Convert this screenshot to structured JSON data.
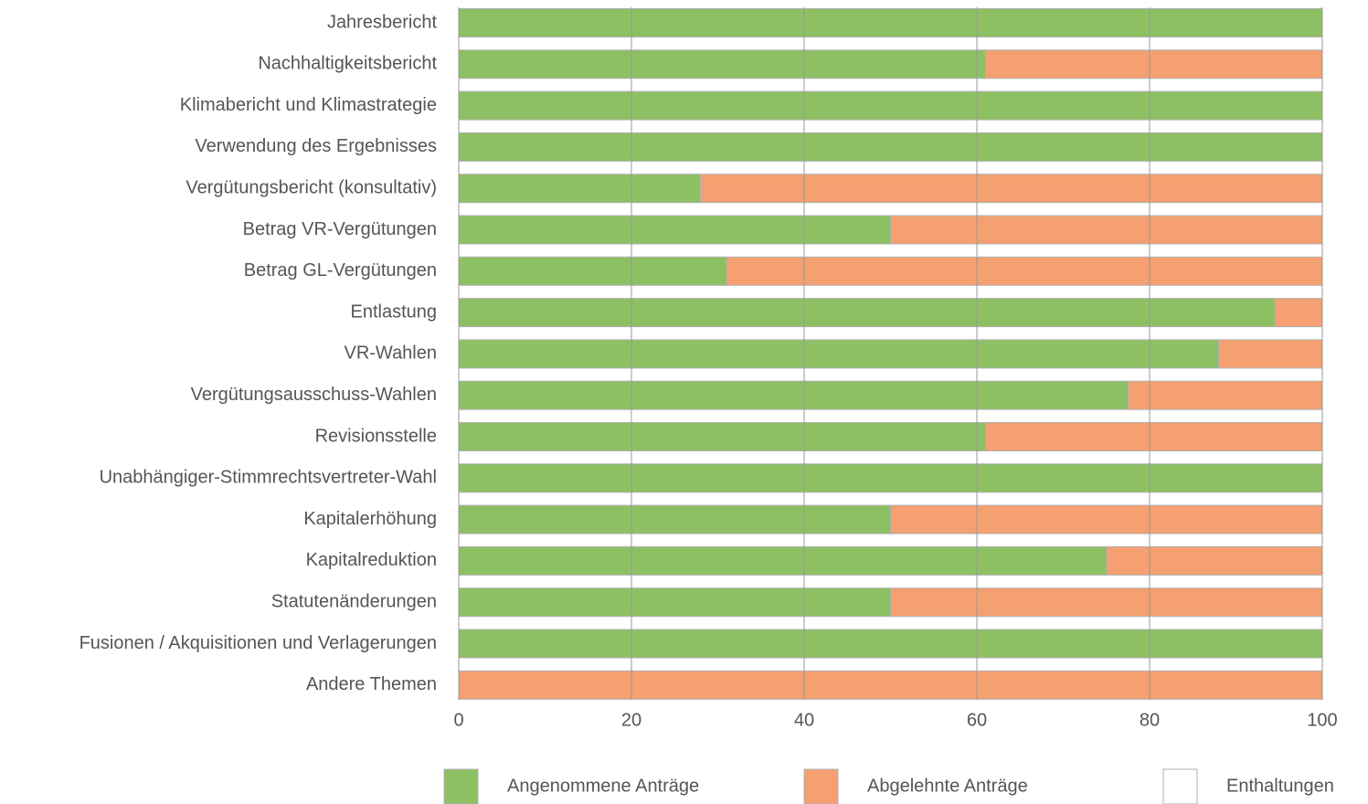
{
  "chart_data": {
    "type": "stacked_bar_horizontal",
    "categories": [
      "Jahresbericht",
      "Nachhaltigkeitsbericht",
      "Klimabericht und Klimastrategie",
      "Verwendung des Ergebnisses",
      "Vergütungsbericht (konsultativ)",
      "Betrag VR-Vergütungen",
      "Betrag GL-Vergütungen",
      "Entlastung",
      "VR-Wahlen",
      "Vergütungsausschuss-Wahlen",
      "Revisionsstelle",
      "Unabhängiger-Stimmrechtsvertreter-Wahl",
      "Kapitalerhöhung",
      "Kapitalreduktion",
      "Statutenänderungen",
      "Fusionen / Akquisitionen und Verlagerungen",
      "Andere Themen"
    ],
    "series": [
      {
        "name": "Angenommene Anträge",
        "color": "#8dc063",
        "values": [
          100,
          61,
          100,
          100,
          28,
          50,
          31,
          94.5,
          88,
          77.5,
          61,
          100,
          50,
          75,
          50,
          100,
          0
        ]
      },
      {
        "name": "Abgelehnte Anträge",
        "color": "#f4a070",
        "values": [
          0,
          39,
          0,
          0,
          72,
          50,
          69,
          5.5,
          12,
          22.5,
          39,
          0,
          50,
          25,
          50,
          0,
          100
        ]
      },
      {
        "name": "Enthaltungen",
        "color": "#ffffff",
        "values": [
          0,
          0,
          0,
          0,
          0,
          0,
          0,
          0,
          0,
          0,
          0,
          0,
          0,
          0,
          0,
          0,
          0
        ]
      }
    ],
    "xlim": [
      0,
      100
    ],
    "xticks": [
      0,
      20,
      40,
      60,
      80,
      100
    ],
    "grid": true
  }
}
